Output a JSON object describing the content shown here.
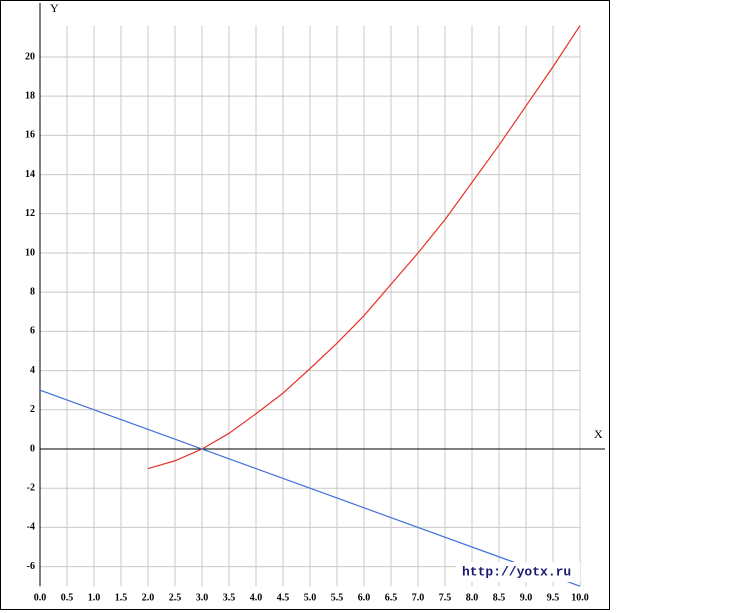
{
  "chart_data": {
    "type": "line",
    "xlabel": "X",
    "ylabel": "Y",
    "watermark": "http://yotx.ru",
    "xlim": [
      0,
      10
    ],
    "ylim": [
      -7,
      21.6
    ],
    "xticks": [
      {
        "value": 0,
        "label": "0.0"
      },
      0.5,
      {
        "value": 1,
        "label": "1.0"
      },
      1.5,
      {
        "value": 2,
        "label": "2.0"
      },
      2.5,
      {
        "value": 3,
        "label": "3.0"
      },
      3.5,
      {
        "value": 4,
        "label": "4.0"
      },
      4.5,
      {
        "value": 5,
        "label": "5.0"
      },
      5.5,
      {
        "value": 6,
        "label": "6.0"
      },
      6.5,
      {
        "value": 7,
        "label": "7.0"
      },
      7.5,
      {
        "value": 8,
        "label": "8.0"
      },
      8.5,
      {
        "value": 9,
        "label": "9.0"
      },
      9.5,
      {
        "value": 10,
        "label": "10.0"
      }
    ],
    "yticks": [
      -6,
      -4,
      -2,
      0,
      2,
      4,
      6,
      8,
      10,
      12,
      14,
      16,
      18,
      20
    ],
    "grid": true,
    "series": [
      {
        "color": "#e8312a",
        "x": [
          2,
          2.5,
          3,
          3.5,
          4,
          4.5,
          5,
          5.5,
          6,
          6.5,
          7,
          7.5,
          8,
          8.5,
          9,
          9.5,
          10
        ],
        "values": [
          -1,
          -0.6,
          0,
          0.8,
          1.8,
          2.85,
          4.1,
          5.4,
          6.8,
          8.4,
          10,
          11.7,
          13.6,
          15.5,
          17.5,
          19.5,
          21.6
        ]
      },
      {
        "color": "#3f6fd8",
        "x": [
          0,
          10
        ],
        "values": [
          3,
          -7
        ]
      }
    ]
  }
}
